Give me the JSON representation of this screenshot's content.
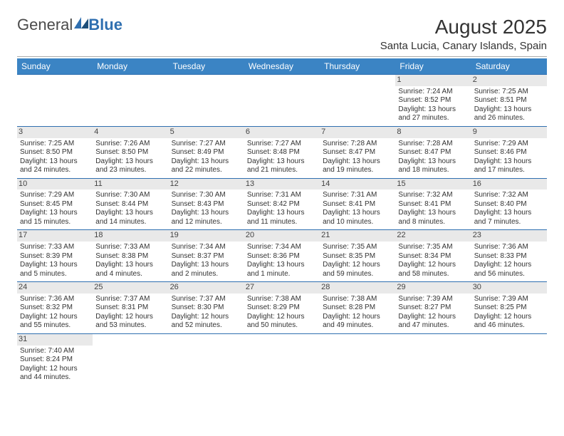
{
  "logo": {
    "text1": "General",
    "text2": "Blue"
  },
  "title": "August 2025",
  "location": "Santa Lucia, Canary Islands, Spain",
  "columns": [
    "Sunday",
    "Monday",
    "Tuesday",
    "Wednesday",
    "Thursday",
    "Friday",
    "Saturday"
  ],
  "colors": {
    "headerBg": "#3b84c4",
    "accent": "#2f6fb0",
    "text": "#333333",
    "bg": "#ffffff",
    "daynumBg": "#e9e9e9"
  },
  "font": {
    "family": "Arial",
    "bodySize": 10,
    "titleSize": 28,
    "locationSize": 15,
    "headerSize": 12,
    "daynumSize": 11
  },
  "startOffset": 5,
  "days": [
    {
      "n": 1,
      "sr": "7:24 AM",
      "ss": "8:52 PM",
      "dl": "13 hours and 27 minutes."
    },
    {
      "n": 2,
      "sr": "7:25 AM",
      "ss": "8:51 PM",
      "dl": "13 hours and 26 minutes."
    },
    {
      "n": 3,
      "sr": "7:25 AM",
      "ss": "8:50 PM",
      "dl": "13 hours and 24 minutes."
    },
    {
      "n": 4,
      "sr": "7:26 AM",
      "ss": "8:50 PM",
      "dl": "13 hours and 23 minutes."
    },
    {
      "n": 5,
      "sr": "7:27 AM",
      "ss": "8:49 PM",
      "dl": "13 hours and 22 minutes."
    },
    {
      "n": 6,
      "sr": "7:27 AM",
      "ss": "8:48 PM",
      "dl": "13 hours and 21 minutes."
    },
    {
      "n": 7,
      "sr": "7:28 AM",
      "ss": "8:47 PM",
      "dl": "13 hours and 19 minutes."
    },
    {
      "n": 8,
      "sr": "7:28 AM",
      "ss": "8:47 PM",
      "dl": "13 hours and 18 minutes."
    },
    {
      "n": 9,
      "sr": "7:29 AM",
      "ss": "8:46 PM",
      "dl": "13 hours and 17 minutes."
    },
    {
      "n": 10,
      "sr": "7:29 AM",
      "ss": "8:45 PM",
      "dl": "13 hours and 15 minutes."
    },
    {
      "n": 11,
      "sr": "7:30 AM",
      "ss": "8:44 PM",
      "dl": "13 hours and 14 minutes."
    },
    {
      "n": 12,
      "sr": "7:30 AM",
      "ss": "8:43 PM",
      "dl": "13 hours and 12 minutes."
    },
    {
      "n": 13,
      "sr": "7:31 AM",
      "ss": "8:42 PM",
      "dl": "13 hours and 11 minutes."
    },
    {
      "n": 14,
      "sr": "7:31 AM",
      "ss": "8:41 PM",
      "dl": "13 hours and 10 minutes."
    },
    {
      "n": 15,
      "sr": "7:32 AM",
      "ss": "8:41 PM",
      "dl": "13 hours and 8 minutes."
    },
    {
      "n": 16,
      "sr": "7:32 AM",
      "ss": "8:40 PM",
      "dl": "13 hours and 7 minutes."
    },
    {
      "n": 17,
      "sr": "7:33 AM",
      "ss": "8:39 PM",
      "dl": "13 hours and 5 minutes."
    },
    {
      "n": 18,
      "sr": "7:33 AM",
      "ss": "8:38 PM",
      "dl": "13 hours and 4 minutes."
    },
    {
      "n": 19,
      "sr": "7:34 AM",
      "ss": "8:37 PM",
      "dl": "13 hours and 2 minutes."
    },
    {
      "n": 20,
      "sr": "7:34 AM",
      "ss": "8:36 PM",
      "dl": "13 hours and 1 minute."
    },
    {
      "n": 21,
      "sr": "7:35 AM",
      "ss": "8:35 PM",
      "dl": "12 hours and 59 minutes."
    },
    {
      "n": 22,
      "sr": "7:35 AM",
      "ss": "8:34 PM",
      "dl": "12 hours and 58 minutes."
    },
    {
      "n": 23,
      "sr": "7:36 AM",
      "ss": "8:33 PM",
      "dl": "12 hours and 56 minutes."
    },
    {
      "n": 24,
      "sr": "7:36 AM",
      "ss": "8:32 PM",
      "dl": "12 hours and 55 minutes."
    },
    {
      "n": 25,
      "sr": "7:37 AM",
      "ss": "8:31 PM",
      "dl": "12 hours and 53 minutes."
    },
    {
      "n": 26,
      "sr": "7:37 AM",
      "ss": "8:30 PM",
      "dl": "12 hours and 52 minutes."
    },
    {
      "n": 27,
      "sr": "7:38 AM",
      "ss": "8:29 PM",
      "dl": "12 hours and 50 minutes."
    },
    {
      "n": 28,
      "sr": "7:38 AM",
      "ss": "8:28 PM",
      "dl": "12 hours and 49 minutes."
    },
    {
      "n": 29,
      "sr": "7:39 AM",
      "ss": "8:27 PM",
      "dl": "12 hours and 47 minutes."
    },
    {
      "n": 30,
      "sr": "7:39 AM",
      "ss": "8:25 PM",
      "dl": "12 hours and 46 minutes."
    },
    {
      "n": 31,
      "sr": "7:40 AM",
      "ss": "8:24 PM",
      "dl": "12 hours and 44 minutes."
    }
  ],
  "labels": {
    "sunrise": "Sunrise:",
    "sunset": "Sunset:",
    "daylight": "Daylight:"
  }
}
